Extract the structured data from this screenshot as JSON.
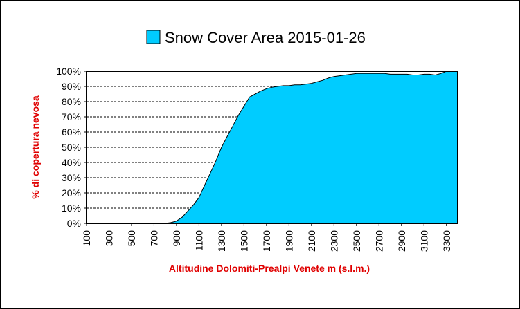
{
  "chart_data": {
    "type": "area",
    "title": "Snow Cover Area 2015-01-26",
    "xlabel": "Altitudine Dolomiti-Prealpi Venete m (s.l.m.)",
    "ylabel": "% di copertura nevosa",
    "xlim": [
      100,
      3400
    ],
    "ylim": [
      0,
      100
    ],
    "x_ticks": [
      "100",
      "300",
      "500",
      "700",
      "900",
      "1100",
      "1300",
      "1500",
      "1700",
      "1900",
      "2100",
      "2300",
      "2500",
      "2700",
      "2900",
      "3100",
      "3300"
    ],
    "y_ticks": [
      "0%",
      "10%",
      "20%",
      "30%",
      "40%",
      "50%",
      "60%",
      "70%",
      "80%",
      "90%",
      "100%"
    ],
    "legend": "top",
    "grid": "horizontal dashed",
    "colors": {
      "fill": "#00ccff",
      "outline": "#000000"
    },
    "series": [
      {
        "name": "Snow Cover Area 2015-01-26",
        "x": [
          100,
          200,
          300,
          400,
          500,
          600,
          700,
          800,
          850,
          900,
          950,
          1000,
          1050,
          1100,
          1150,
          1200,
          1250,
          1300,
          1350,
          1400,
          1450,
          1500,
          1550,
          1600,
          1650,
          1700,
          1750,
          1800,
          1850,
          1900,
          1950,
          2000,
          2050,
          2100,
          2150,
          2200,
          2250,
          2300,
          2350,
          2400,
          2450,
          2500,
          2550,
          2600,
          2650,
          2700,
          2750,
          2800,
          2850,
          2900,
          2950,
          3000,
          3050,
          3100,
          3150,
          3200,
          3250,
          3300,
          3350,
          3400
        ],
        "y": [
          0,
          0,
          0,
          0,
          0,
          0,
          0,
          0,
          0.5,
          1.5,
          4,
          8,
          12,
          17,
          25,
          33,
          41,
          50,
          57,
          64,
          71,
          77,
          83,
          85,
          87,
          88.5,
          89.5,
          90,
          90.5,
          90.5,
          91,
          91,
          91.5,
          92,
          93,
          94,
          95.5,
          96.5,
          97,
          97.5,
          98,
          98.5,
          98.5,
          98.5,
          98.5,
          98.5,
          98.5,
          98,
          98,
          98,
          98,
          97.5,
          97.5,
          98,
          98,
          97.5,
          98.5,
          100,
          100,
          100
        ]
      }
    ]
  }
}
